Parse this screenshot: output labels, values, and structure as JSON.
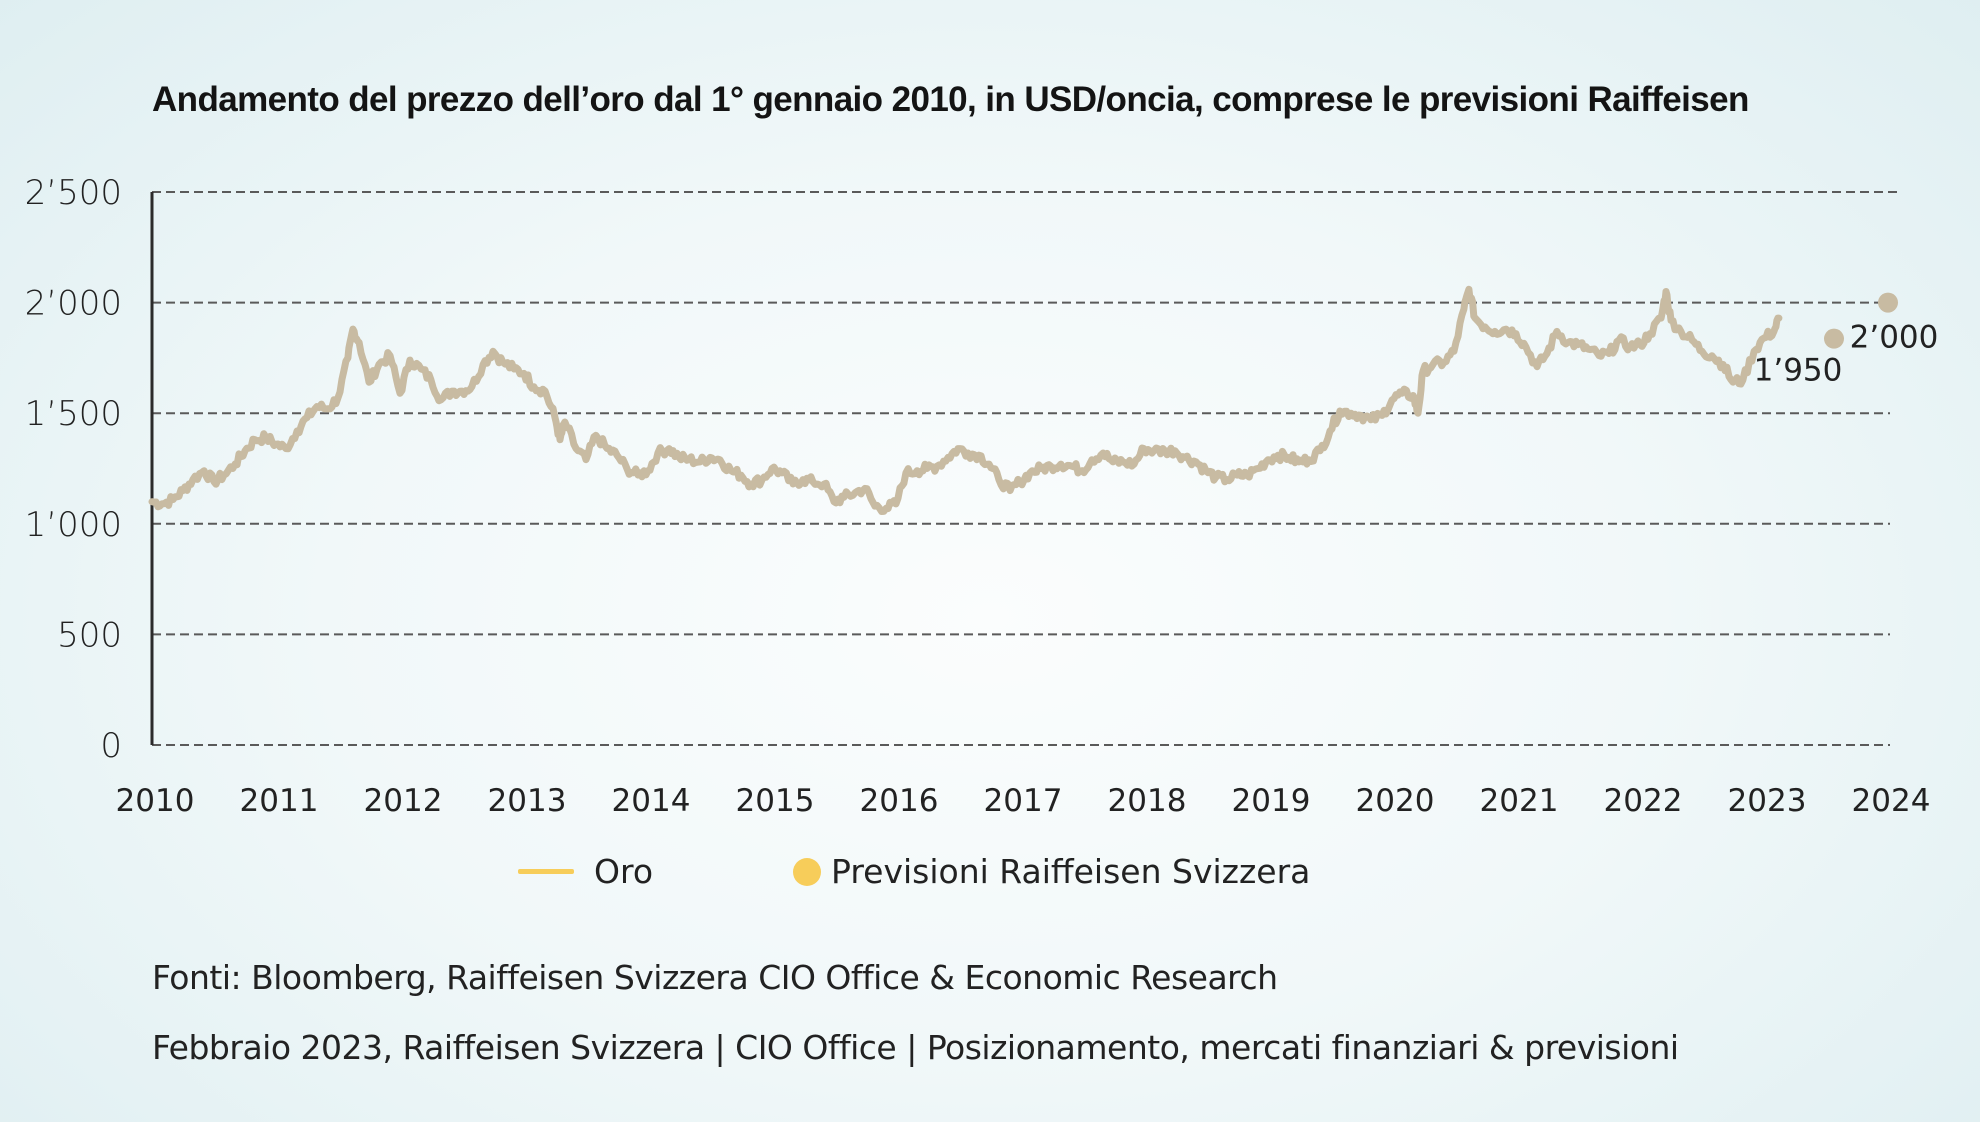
{
  "chart_data": {
    "type": "line",
    "title": "Andamento del prezzo dell’oro dal 1° gennaio 2010, in USD/oncia, comprese le previsioni Raiffeisen",
    "xlabel": "",
    "ylabel": "",
    "ylim": [
      0,
      2500
    ],
    "xlim": [
      2010,
      2024
    ],
    "grid": true,
    "yticks": [
      0,
      500,
      1000,
      1500,
      2000,
      2500
    ],
    "ytick_labels": [
      "0",
      "500",
      "1’000",
      "1’500",
      "2’000",
      "2’500"
    ],
    "xtick_labels": [
      "2010",
      "2011",
      "2012",
      "2013",
      "2014",
      "2015",
      "2016",
      "2017",
      "2018",
      "2019",
      "2020",
      "2021",
      "2022",
      "2023",
      "2024"
    ],
    "legend_position": "bottom-center",
    "series": [
      {
        "name": "Oro",
        "type": "line",
        "color": "#c8bba2",
        "legend_color": "#f7cd5a",
        "x": [
          2010.0,
          2010.08,
          2010.17,
          2010.25,
          2010.33,
          2010.42,
          2010.5,
          2010.58,
          2010.67,
          2010.75,
          2010.83,
          2010.92,
          2011.0,
          2011.08,
          2011.17,
          2011.25,
          2011.33,
          2011.42,
          2011.5,
          2011.58,
          2011.62,
          2011.67,
          2011.75,
          2011.83,
          2011.92,
          2012.0,
          2012.08,
          2012.17,
          2012.25,
          2012.33,
          2012.42,
          2012.5,
          2012.58,
          2012.67,
          2012.75,
          2012.83,
          2012.92,
          2013.0,
          2013.08,
          2013.17,
          2013.25,
          2013.29,
          2013.33,
          2013.42,
          2013.5,
          2013.58,
          2013.67,
          2013.75,
          2013.83,
          2013.92,
          2014.0,
          2014.08,
          2014.17,
          2014.25,
          2014.33,
          2014.42,
          2014.5,
          2014.58,
          2014.67,
          2014.75,
          2014.83,
          2014.92,
          2015.0,
          2015.08,
          2015.17,
          2015.25,
          2015.33,
          2015.42,
          2015.5,
          2015.58,
          2015.67,
          2015.75,
          2015.83,
          2015.92,
          2016.0,
          2016.08,
          2016.17,
          2016.25,
          2016.33,
          2016.42,
          2016.5,
          2016.58,
          2016.67,
          2016.75,
          2016.83,
          2016.92,
          2017.0,
          2017.08,
          2017.17,
          2017.25,
          2017.33,
          2017.42,
          2017.5,
          2017.58,
          2017.67,
          2017.75,
          2017.83,
          2017.92,
          2018.0,
          2018.08,
          2018.17,
          2018.25,
          2018.33,
          2018.42,
          2018.5,
          2018.58,
          2018.67,
          2018.75,
          2018.83,
          2018.92,
          2019.0,
          2019.08,
          2019.17,
          2019.25,
          2019.33,
          2019.42,
          2019.5,
          2019.58,
          2019.67,
          2019.75,
          2019.83,
          2019.92,
          2020.0,
          2020.08,
          2020.17,
          2020.21,
          2020.25,
          2020.33,
          2020.42,
          2020.5,
          2020.58,
          2020.62,
          2020.67,
          2020.75,
          2020.83,
          2020.92,
          2021.0,
          2021.08,
          2021.17,
          2021.25,
          2021.33,
          2021.42,
          2021.5,
          2021.58,
          2021.67,
          2021.75,
          2021.83,
          2021.92,
          2022.0,
          2022.08,
          2022.17,
          2022.21,
          2022.25,
          2022.33,
          2022.42,
          2022.5,
          2022.58,
          2022.67,
          2022.75,
          2022.83,
          2022.92,
          2023.0,
          2023.08,
          2023.12
        ],
        "values": [
          1100,
          1090,
          1110,
          1150,
          1200,
          1240,
          1190,
          1220,
          1270,
          1330,
          1380,
          1390,
          1360,
          1340,
          1420,
          1480,
          1530,
          1520,
          1570,
          1750,
          1880,
          1820,
          1640,
          1720,
          1760,
          1590,
          1740,
          1700,
          1650,
          1560,
          1600,
          1600,
          1620,
          1720,
          1780,
          1730,
          1700,
          1680,
          1620,
          1600,
          1480,
          1380,
          1460,
          1340,
          1290,
          1400,
          1340,
          1310,
          1250,
          1220,
          1240,
          1320,
          1340,
          1300,
          1290,
          1280,
          1300,
          1290,
          1240,
          1220,
          1180,
          1200,
          1250,
          1230,
          1180,
          1200,
          1190,
          1180,
          1100,
          1120,
          1140,
          1160,
          1080,
          1070,
          1090,
          1230,
          1240,
          1250,
          1260,
          1300,
          1340,
          1320,
          1310,
          1270,
          1200,
          1150,
          1190,
          1230,
          1250,
          1260,
          1270,
          1260,
          1240,
          1290,
          1320,
          1280,
          1280,
          1270,
          1340,
          1330,
          1330,
          1330,
          1300,
          1280,
          1240,
          1210,
          1200,
          1220,
          1220,
          1250,
          1290,
          1310,
          1300,
          1280,
          1290,
          1330,
          1420,
          1510,
          1500,
          1490,
          1470,
          1490,
          1560,
          1590,
          1580,
          1500,
          1690,
          1720,
          1730,
          1780,
          1970,
          2060,
          1930,
          1890,
          1870,
          1880,
          1860,
          1800,
          1710,
          1770,
          1870,
          1820,
          1810,
          1790,
          1760,
          1770,
          1830,
          1800,
          1810,
          1860,
          1930,
          2050,
          1920,
          1870,
          1830,
          1780,
          1760,
          1720,
          1640,
          1650,
          1780,
          1840,
          1870,
          1930
        ]
      },
      {
        "name": "Previsioni Raiffeisen Svizzera",
        "type": "scatter",
        "color": "#c8bba2",
        "legend_color": "#f7cd5a",
        "x": [
          2023.5,
          2024.0
        ],
        "values": [
          1950,
          2000
        ],
        "labels": [
          "1’950",
          "2’000"
        ]
      }
    ]
  },
  "legend": {
    "items": [
      {
        "label": "Oro",
        "icon": "line-swatch-icon"
      },
      {
        "label": "Previsioni Raiffeisen Svizzera",
        "icon": "dot-swatch-icon"
      }
    ]
  },
  "footer": {
    "sources": "Fonti: Bloomberg, Raiffeisen Svizzera CIO Office & Economic Research",
    "publication": "Febbraio 2023, Raiffeisen Svizzera | CIO Office | Posizionamento, mercati finanziari & previsioni"
  }
}
